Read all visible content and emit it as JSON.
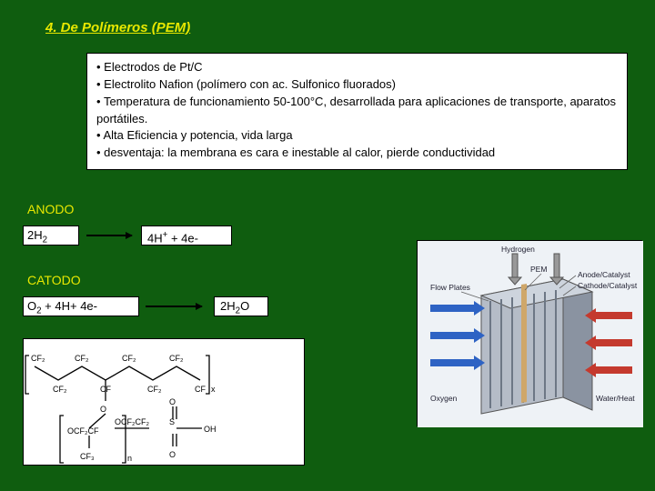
{
  "title": "4. De Polímeros (PEM)",
  "info": {
    "items": [
      "Electrodos de Pt/C",
      "Electrolito Nafion (polímero con ac. Sulfonico fluorados)",
      "Temperatura de funcionamiento 50-100°C, desarrollada para aplicaciones de transporte, aparatos portátiles.",
      "Alta Eficiencia y potencia, vida larga",
      "desventaja: la membrana es cara e inestable al calor, pierde conductividad"
    ]
  },
  "anodo": {
    "label": "ANODO",
    "reactant_html": "2H<sub>2</sub>",
    "product_html": "4H<sup>+</sup> + 4e-"
  },
  "catodo": {
    "label": "CATODO",
    "reactant_html": "O<sub>2</sub> + 4H+ 4e-",
    "product_html": "2H<sub>2</sub>O"
  },
  "colors": {
    "background": "#0f5d0f",
    "accent_text": "#e8e800",
    "box_bg": "#ffffff",
    "box_border": "#000000"
  },
  "fuelcell": {
    "labels": {
      "hydrogen": "Hydrogen",
      "pem": "PEM",
      "anode": "Anode/Catalyst",
      "cathode": "Cathode/Catalyst",
      "flow": "Flow Plates",
      "oxygen": "Oxygen",
      "water": "Water/Heat"
    },
    "colors": {
      "plate": "#9aa3b0",
      "plate_dark": "#6d7785",
      "pem_layer": "#cfa76a",
      "h_arrow": "#2e63c4",
      "o_arrow": "#c43a2e",
      "bg": "#eef2f6"
    }
  },
  "nafion": {
    "stroke": "#000000",
    "label_color": "#000000"
  }
}
